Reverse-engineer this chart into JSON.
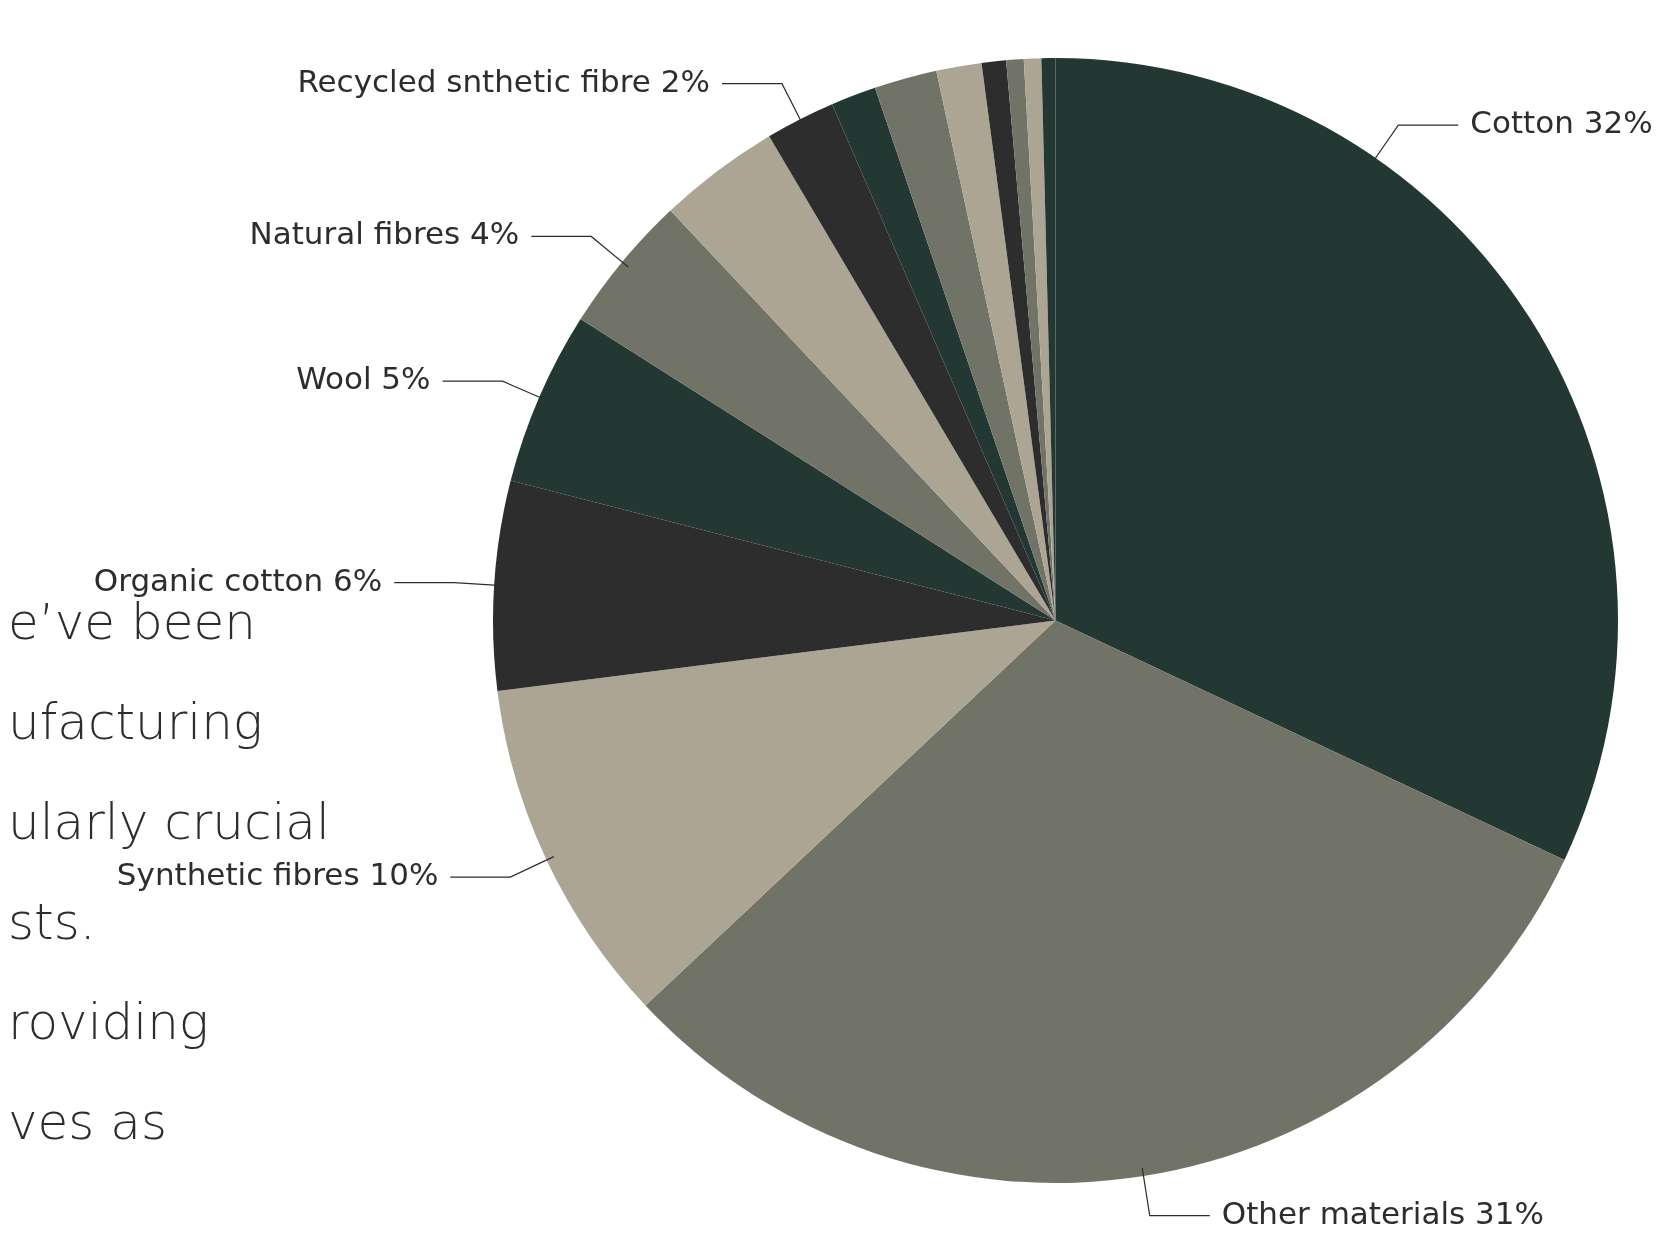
{
  "chart_data": {
    "type": "pie",
    "categories": [
      "Cotton",
      "Other materials",
      "Synthetic fibres",
      "Organic cotton",
      "Wool",
      "Natural fibres",
      null,
      "Recycled snthetic fibre",
      null,
      null,
      null,
      null,
      null,
      null,
      null
    ],
    "values": [
      32,
      31,
      10,
      6,
      5,
      4,
      3.5,
      2,
      1.3,
      1.8,
      1.3,
      0.7,
      0.5,
      0.5,
      0.4
    ],
    "value_labels": [
      "32%",
      "31%",
      "10%",
      "6%",
      "5%",
      "4%",
      null,
      "2%",
      null,
      null,
      null,
      null,
      null,
      null,
      null
    ],
    "colors": [
      "#243833",
      "#707365",
      "#aca593",
      "#2d2d2d",
      "#243833",
      "#707365",
      "#aca593",
      "#2d2d2d",
      "#243833",
      "#707365",
      "#aca593",
      "#2d2d2d",
      "#707365",
      "#aca593",
      "#243833"
    ],
    "legend": false,
    "annotations": [
      "e’ve been",
      "ufacturing",
      "ularly crucial",
      "sts.",
      "roviding",
      "ves as"
    ]
  }
}
